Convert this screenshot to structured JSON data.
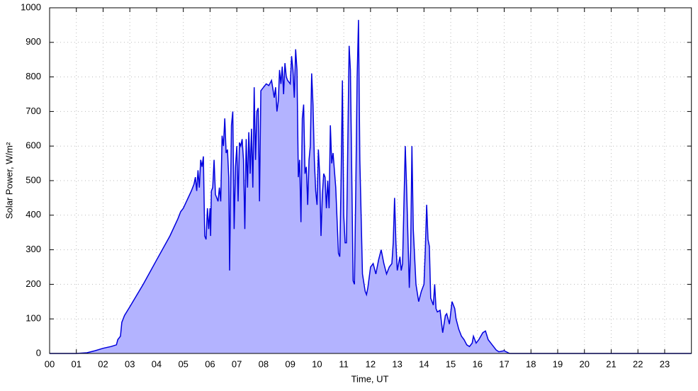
{
  "chart_data": {
    "type": "area",
    "xlabel": "Time, UT",
    "ylabel": "Solar Power, W/m²",
    "x": [
      0,
      1.0,
      1.4,
      1.7,
      2.0,
      2.3,
      2.5,
      2.55,
      2.65,
      2.7,
      2.8,
      3.0,
      3.5,
      4.0,
      4.5,
      4.8,
      4.9,
      5.0,
      5.3,
      5.4,
      5.45,
      5.5,
      5.55,
      5.6,
      5.65,
      5.7,
      5.75,
      5.8,
      5.85,
      5.9,
      5.95,
      6.0,
      6.02,
      6.05,
      6.1,
      6.15,
      6.2,
      6.25,
      6.3,
      6.35,
      6.4,
      6.45,
      6.5,
      6.55,
      6.6,
      6.65,
      6.7,
      6.73,
      6.8,
      6.85,
      6.9,
      6.95,
      7.0,
      7.05,
      7.1,
      7.15,
      7.2,
      7.25,
      7.3,
      7.35,
      7.4,
      7.45,
      7.5,
      7.55,
      7.6,
      7.65,
      7.7,
      7.75,
      7.8,
      7.85,
      7.9,
      8.0,
      8.1,
      8.2,
      8.3,
      8.4,
      8.45,
      8.5,
      8.55,
      8.6,
      8.65,
      8.7,
      8.75,
      8.8,
      8.85,
      8.9,
      9.0,
      9.05,
      9.1,
      9.15,
      9.2,
      9.25,
      9.3,
      9.35,
      9.4,
      9.45,
      9.5,
      9.55,
      9.6,
      9.65,
      9.7,
      9.75,
      9.8,
      9.85,
      9.9,
      9.95,
      10.0,
      10.05,
      10.1,
      10.15,
      10.2,
      10.25,
      10.3,
      10.35,
      10.4,
      10.45,
      10.5,
      10.55,
      10.6,
      10.7,
      10.8,
      10.85,
      10.9,
      10.95,
      11.0,
      11.05,
      11.1,
      11.2,
      11.25,
      11.3,
      11.35,
      11.4,
      11.45,
      11.5,
      11.55,
      11.6,
      11.7,
      11.8,
      11.85,
      11.9,
      12.0,
      12.1,
      12.2,
      12.3,
      12.4,
      12.5,
      12.6,
      12.7,
      12.8,
      12.85,
      12.9,
      12.95,
      13.0,
      13.1,
      13.15,
      13.2,
      13.3,
      13.35,
      13.45,
      13.5,
      13.55,
      13.6,
      13.7,
      13.8,
      13.9,
      14.0,
      14.05,
      14.1,
      14.15,
      14.2,
      14.25,
      14.35,
      14.4,
      14.45,
      14.5,
      14.6,
      14.7,
      14.8,
      14.85,
      14.95,
      15.05,
      15.15,
      15.2,
      15.3,
      15.4,
      15.5,
      15.6,
      15.7,
      15.8,
      15.85,
      15.95,
      16.05,
      16.2,
      16.3,
      16.4,
      16.5,
      16.7,
      16.8,
      17.0,
      17.2,
      24
    ],
    "values": [
      0,
      0,
      2,
      8,
      15,
      20,
      25,
      40,
      50,
      90,
      110,
      135,
      200,
      270,
      340,
      390,
      410,
      420,
      470,
      490,
      510,
      470,
      530,
      480,
      560,
      540,
      570,
      340,
      330,
      420,
      360,
      420,
      340,
      470,
      480,
      560,
      460,
      450,
      440,
      480,
      440,
      630,
      600,
      680,
      580,
      590,
      510,
      240,
      660,
      700,
      360,
      540,
      600,
      440,
      610,
      600,
      620,
      560,
      360,
      620,
      480,
      640,
      520,
      650,
      480,
      770,
      560,
      700,
      710,
      440,
      760,
      770,
      780,
      775,
      790,
      740,
      770,
      700,
      730,
      820,
      780,
      830,
      750,
      840,
      800,
      790,
      780,
      860,
      820,
      740,
      880,
      820,
      510,
      560,
      380,
      680,
      720,
      520,
      540,
      430,
      560,
      600,
      810,
      720,
      560,
      470,
      430,
      590,
      520,
      340,
      460,
      520,
      510,
      420,
      500,
      420,
      660,
      550,
      580,
      480,
      290,
      280,
      500,
      790,
      400,
      320,
      320,
      890,
      820,
      520,
      210,
      200,
      480,
      800,
      965,
      560,
      230,
      180,
      170,
      190,
      250,
      260,
      230,
      270,
      300,
      260,
      230,
      250,
      260,
      320,
      450,
      320,
      240,
      280,
      240,
      260,
      600,
      480,
      190,
      300,
      600,
      360,
      200,
      150,
      180,
      200,
      300,
      430,
      330,
      310,
      160,
      140,
      200,
      130,
      120,
      125,
      60,
      110,
      115,
      85,
      150,
      130,
      100,
      70,
      50,
      40,
      25,
      20,
      30,
      50,
      30,
      40,
      60,
      65,
      40,
      30,
      10,
      5,
      8,
      0,
      0
    ],
    "color": "#0000dd",
    "fill": "#b3b3ff",
    "xlim": [
      0,
      24
    ],
    "xticks": [
      {
        "value": 0,
        "label": "00"
      },
      {
        "value": 1,
        "label": "01"
      },
      {
        "value": 2,
        "label": "02"
      },
      {
        "value": 3,
        "label": "03"
      },
      {
        "value": 4,
        "label": "04"
      },
      {
        "value": 5,
        "label": "05"
      },
      {
        "value": 6,
        "label": "06"
      },
      {
        "value": 7,
        "label": "07"
      },
      {
        "value": 8,
        "label": "08"
      },
      {
        "value": 9,
        "label": "09"
      },
      10,
      11,
      12,
      13,
      14,
      15,
      16,
      17,
      18,
      19,
      20,
      21,
      22,
      23
    ],
    "ylim": [
      0,
      1000
    ],
    "yticks": [
      0,
      100,
      200,
      300,
      400,
      500,
      600,
      700,
      800,
      900,
      1000
    ],
    "grid": true
  }
}
